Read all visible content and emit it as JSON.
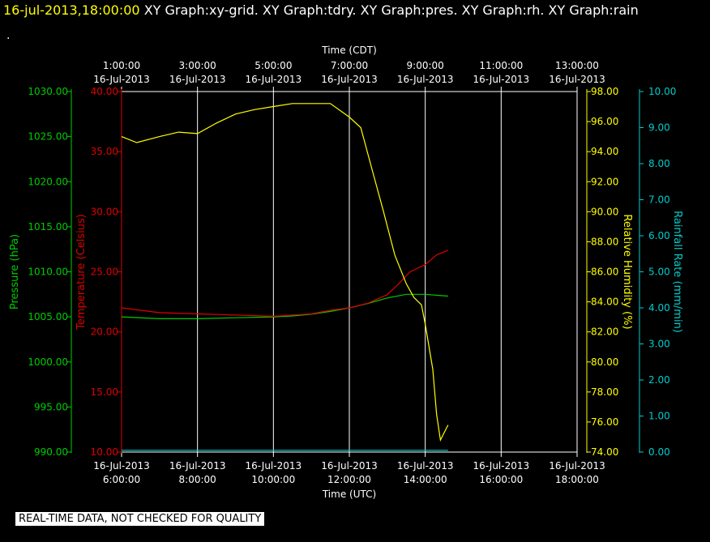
{
  "header": {
    "timestamp": "16-jul-2013,18:00:00",
    "graphs": "XY Graph:xy-grid.  XY Graph:tdry.  XY Graph:pres.  XY Graph:rh.  XY Graph:rain",
    "marker": "."
  },
  "footer_note": "REAL-TIME DATA, NOT CHECKED FOR QUALITY",
  "colors": {
    "pressure": "#00cc00",
    "temperature": "#dd0000",
    "humidity": "#ffff00",
    "rain": "#00cccc",
    "grid": "#ffffff",
    "text": "#ffffff"
  },
  "chart_data": {
    "type": "line",
    "grid": true,
    "x_top": {
      "label": "Time (CDT)",
      "ticks": [
        {
          "time": "1:00:00",
          "date": "16-Jul-2013"
        },
        {
          "time": "3:00:00",
          "date": "16-Jul-2013"
        },
        {
          "time": "5:00:00",
          "date": "16-Jul-2013"
        },
        {
          "time": "7:00:00",
          "date": "16-Jul-2013"
        },
        {
          "time": "9:00:00",
          "date": "16-Jul-2013"
        },
        {
          "time": "11:00:00",
          "date": "16-Jul-2013"
        },
        {
          "time": "13:00:00",
          "date": "16-Jul-2013"
        }
      ]
    },
    "x_bottom": {
      "label": "Time (UTC)",
      "range_hours": [
        6,
        18
      ],
      "ticks": [
        {
          "date": "16-Jul-2013",
          "time": "6:00:00"
        },
        {
          "date": "16-Jul-2013",
          "time": "8:00:00"
        },
        {
          "date": "16-Jul-2013",
          "time": "10:00:00"
        },
        {
          "date": "16-Jul-2013",
          "time": "12:00:00"
        },
        {
          "date": "16-Jul-2013",
          "time": "14:00:00"
        },
        {
          "date": "16-Jul-2013",
          "time": "16:00:00"
        },
        {
          "date": "16-Jul-2013",
          "time": "18:00:00"
        }
      ]
    },
    "axes": {
      "pressure": {
        "label": "Pressure (hPa)",
        "range": [
          990,
          1030
        ],
        "ticks": [
          "990.00",
          "995.00",
          "1000.00",
          "1005.00",
          "1010.00",
          "1015.00",
          "1020.00",
          "1025.00",
          "1030.00"
        ]
      },
      "temperature": {
        "label": "Temperature (Celsius)",
        "range": [
          10,
          40
        ],
        "ticks": [
          "10.00",
          "15.00",
          "20.00",
          "25.00",
          "30.00",
          "35.00",
          "40.00"
        ]
      },
      "humidity": {
        "label": "Relative Humidity (%)",
        "range": [
          74,
          98
        ],
        "ticks": [
          "74.00",
          "76.00",
          "78.00",
          "80.00",
          "82.00",
          "84.00",
          "86.00",
          "88.00",
          "90.00",
          "92.00",
          "94.00",
          "96.00",
          "98.00"
        ]
      },
      "rain": {
        "label": "Rainfall Rate (mm/min)",
        "range": [
          0,
          10
        ],
        "ticks": [
          "0.00",
          "1.00",
          "2.00",
          "3.00",
          "4.00",
          "5.00",
          "6.00",
          "7.00",
          "8.00",
          "9.00",
          "10.00"
        ]
      }
    },
    "series": [
      {
        "name": "Pressure (hPa)",
        "axis": "pressure",
        "x": [
          6.0,
          7.0,
          8.0,
          9.0,
          10.0,
          10.5,
          11.0,
          11.5,
          12.0,
          12.5,
          13.0,
          13.5,
          14.0,
          14.6
        ],
        "y": [
          1005.0,
          1004.8,
          1004.8,
          1004.9,
          1005.0,
          1005.1,
          1005.3,
          1005.6,
          1006.0,
          1006.5,
          1007.1,
          1007.5,
          1007.5,
          1007.3
        ]
      },
      {
        "name": "Temperature (Celsius)",
        "axis": "temperature",
        "x": [
          6.0,
          6.5,
          7.0,
          8.0,
          9.0,
          10.0,
          11.0,
          11.5,
          12.0,
          12.5,
          13.0,
          13.3,
          13.6,
          14.0,
          14.3,
          14.6
        ],
        "y": [
          22.0,
          21.8,
          21.6,
          21.5,
          21.4,
          21.3,
          21.5,
          21.8,
          22.0,
          22.4,
          23.1,
          24.0,
          25.0,
          25.6,
          26.4,
          26.8
        ]
      },
      {
        "name": "Relative Humidity (%)",
        "axis": "humidity",
        "x": [
          6.0,
          6.4,
          7.0,
          7.5,
          8.0,
          8.5,
          9.0,
          9.5,
          10.0,
          10.5,
          11.0,
          11.5,
          12.0,
          12.3,
          12.6,
          12.9,
          13.2,
          13.5,
          13.7,
          13.9,
          14.0,
          14.2,
          14.3,
          14.4,
          14.5,
          14.6
        ],
        "y": [
          95.0,
          94.6,
          95.0,
          95.3,
          95.2,
          95.9,
          96.5,
          96.8,
          97.0,
          97.2,
          97.2,
          97.2,
          96.3,
          95.6,
          92.8,
          90.0,
          87.1,
          85.2,
          84.3,
          83.8,
          82.5,
          79.5,
          76.5,
          74.8,
          75.3,
          75.8
        ]
      },
      {
        "name": "Rainfall Rate (mm/min)",
        "axis": "rain",
        "x": [
          6.0,
          14.6
        ],
        "y": [
          0.05,
          0.05
        ]
      }
    ]
  }
}
